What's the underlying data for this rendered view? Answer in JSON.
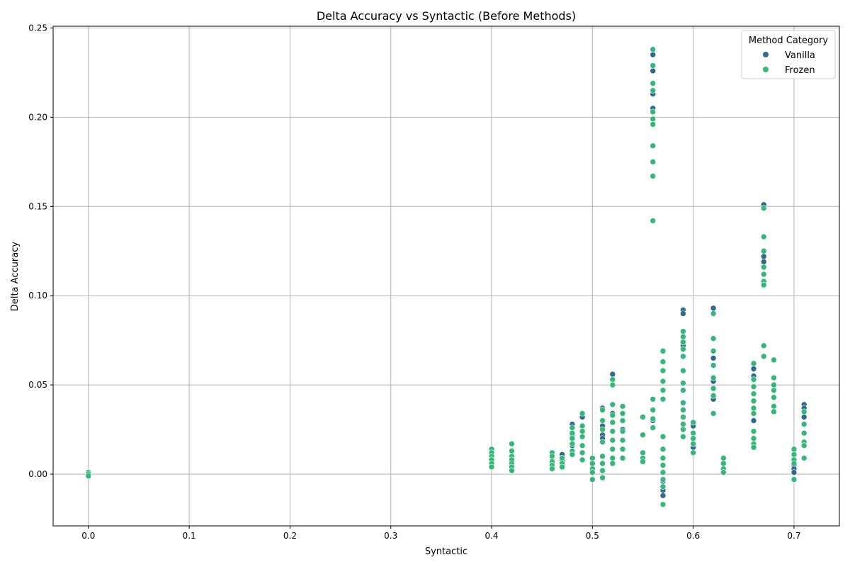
{
  "chart_data": {
    "type": "scatter",
    "title": "Delta Accuracy vs Syntactic (Before Methods)",
    "xlabel": "Syntactic",
    "ylabel": "Delta Accuracy",
    "xlim": [
      -0.035,
      0.745
    ],
    "ylim": [
      -0.029,
      0.251
    ],
    "xticks": [
      0.0,
      0.1,
      0.2,
      0.3,
      0.4,
      0.5,
      0.6,
      0.7
    ],
    "xtick_labels": [
      "0.0",
      "0.1",
      "0.2",
      "0.3",
      "0.4",
      "0.5",
      "0.6",
      "0.7"
    ],
    "yticks": [
      0.0,
      0.05,
      0.1,
      0.15,
      0.2,
      0.25
    ],
    "ytick_labels": [
      "0.00",
      "0.05",
      "0.10",
      "0.15",
      "0.20",
      "0.25"
    ],
    "grid": true,
    "legend": {
      "title": "Method Category",
      "placement": "top-right"
    },
    "series": [
      {
        "name": "Vanilla",
        "color": "#31688e",
        "points": [
          [
            0.0,
            0.0
          ],
          [
            0.0,
            -0.001
          ],
          [
            0.47,
            0.011
          ],
          [
            0.47,
            0.008
          ],
          [
            0.48,
            0.028
          ],
          [
            0.48,
            0.022
          ],
          [
            0.48,
            0.016
          ],
          [
            0.49,
            0.032
          ],
          [
            0.51,
            0.037
          ],
          [
            0.51,
            0.027
          ],
          [
            0.51,
            0.022
          ],
          [
            0.51,
            0.02
          ],
          [
            0.52,
            0.056
          ],
          [
            0.52,
            0.034
          ],
          [
            0.53,
            0.025
          ],
          [
            0.56,
            0.235
          ],
          [
            0.56,
            0.226
          ],
          [
            0.56,
            0.213
          ],
          [
            0.56,
            0.205
          ],
          [
            0.56,
            0.03
          ],
          [
            0.57,
            -0.012
          ],
          [
            0.57,
            -0.009
          ],
          [
            0.57,
            -0.004
          ],
          [
            0.59,
            0.092
          ],
          [
            0.59,
            0.09
          ],
          [
            0.59,
            0.072
          ],
          [
            0.6,
            0.027
          ],
          [
            0.6,
            0.015
          ],
          [
            0.6,
            0.012
          ],
          [
            0.62,
            0.093
          ],
          [
            0.62,
            0.065
          ],
          [
            0.62,
            0.052
          ],
          [
            0.62,
            0.042
          ],
          [
            0.66,
            0.059
          ],
          [
            0.66,
            0.055
          ],
          [
            0.66,
            0.03
          ],
          [
            0.67,
            0.151
          ],
          [
            0.67,
            0.122
          ],
          [
            0.67,
            0.119
          ],
          [
            0.7,
            0.005
          ],
          [
            0.7,
            0.003
          ],
          [
            0.7,
            0.001
          ],
          [
            0.71,
            0.039
          ],
          [
            0.71,
            0.037
          ],
          [
            0.71,
            0.032
          ]
        ]
      },
      {
        "name": "Frozen",
        "color": "#35b779",
        "points": [
          [
            0.0,
            0.001
          ],
          [
            0.0,
            0.0
          ],
          [
            0.0,
            -0.001
          ],
          [
            0.4,
            0.014
          ],
          [
            0.4,
            0.012
          ],
          [
            0.4,
            0.01
          ],
          [
            0.4,
            0.008
          ],
          [
            0.4,
            0.006
          ],
          [
            0.4,
            0.004
          ],
          [
            0.42,
            0.017
          ],
          [
            0.42,
            0.013
          ],
          [
            0.42,
            0.01
          ],
          [
            0.42,
            0.008
          ],
          [
            0.42,
            0.006
          ],
          [
            0.42,
            0.004
          ],
          [
            0.42,
            0.002
          ],
          [
            0.46,
            0.012
          ],
          [
            0.46,
            0.01
          ],
          [
            0.46,
            0.007
          ],
          [
            0.46,
            0.005
          ],
          [
            0.46,
            0.003
          ],
          [
            0.47,
            0.009
          ],
          [
            0.47,
            0.006
          ],
          [
            0.47,
            0.004
          ],
          [
            0.48,
            0.026
          ],
          [
            0.48,
            0.023
          ],
          [
            0.48,
            0.02
          ],
          [
            0.48,
            0.017
          ],
          [
            0.48,
            0.013
          ],
          [
            0.48,
            0.011
          ],
          [
            0.49,
            0.034
          ],
          [
            0.49,
            0.027
          ],
          [
            0.49,
            0.024
          ],
          [
            0.49,
            0.021
          ],
          [
            0.49,
            0.016
          ],
          [
            0.49,
            0.012
          ],
          [
            0.49,
            0.008
          ],
          [
            0.5,
            0.009
          ],
          [
            0.5,
            0.006
          ],
          [
            0.5,
            0.003
          ],
          [
            0.5,
            0.001
          ],
          [
            0.5,
            -0.003
          ],
          [
            0.51,
            0.036
          ],
          [
            0.51,
            0.03
          ],
          [
            0.51,
            0.025
          ],
          [
            0.51,
            0.018
          ],
          [
            0.51,
            0.01
          ],
          [
            0.51,
            0.006
          ],
          [
            0.51,
            0.002
          ],
          [
            0.51,
            -0.002
          ],
          [
            0.52,
            0.053
          ],
          [
            0.52,
            0.05
          ],
          [
            0.52,
            0.039
          ],
          [
            0.52,
            0.033
          ],
          [
            0.52,
            0.029
          ],
          [
            0.52,
            0.024
          ],
          [
            0.52,
            0.019
          ],
          [
            0.52,
            0.014
          ],
          [
            0.52,
            0.009
          ],
          [
            0.52,
            0.006
          ],
          [
            0.53,
            0.038
          ],
          [
            0.53,
            0.034
          ],
          [
            0.53,
            0.03
          ],
          [
            0.53,
            0.024
          ],
          [
            0.53,
            0.019
          ],
          [
            0.53,
            0.014
          ],
          [
            0.53,
            0.009
          ],
          [
            0.55,
            0.032
          ],
          [
            0.55,
            0.022
          ],
          [
            0.55,
            0.012
          ],
          [
            0.55,
            0.009
          ],
          [
            0.55,
            0.007
          ],
          [
            0.56,
            0.238
          ],
          [
            0.56,
            0.229
          ],
          [
            0.56,
            0.219
          ],
          [
            0.56,
            0.215
          ],
          [
            0.56,
            0.203
          ],
          [
            0.56,
            0.199
          ],
          [
            0.56,
            0.196
          ],
          [
            0.56,
            0.184
          ],
          [
            0.56,
            0.175
          ],
          [
            0.56,
            0.167
          ],
          [
            0.56,
            0.142
          ],
          [
            0.56,
            0.042
          ],
          [
            0.56,
            0.036
          ],
          [
            0.56,
            0.031
          ],
          [
            0.56,
            0.026
          ],
          [
            0.57,
            0.069
          ],
          [
            0.57,
            0.063
          ],
          [
            0.57,
            0.058
          ],
          [
            0.57,
            0.052
          ],
          [
            0.57,
            0.047
          ],
          [
            0.57,
            0.042
          ],
          [
            0.57,
            0.021
          ],
          [
            0.57,
            0.014
          ],
          [
            0.57,
            0.009
          ],
          [
            0.57,
            0.005
          ],
          [
            0.57,
            0.001
          ],
          [
            0.57,
            -0.003
          ],
          [
            0.57,
            -0.007
          ],
          [
            0.57,
            -0.017
          ],
          [
            0.59,
            0.08
          ],
          [
            0.59,
            0.077
          ],
          [
            0.59,
            0.074
          ],
          [
            0.59,
            0.07
          ],
          [
            0.59,
            0.066
          ],
          [
            0.59,
            0.058
          ],
          [
            0.59,
            0.051
          ],
          [
            0.59,
            0.047
          ],
          [
            0.59,
            0.04
          ],
          [
            0.59,
            0.036
          ],
          [
            0.59,
            0.032
          ],
          [
            0.59,
            0.028
          ],
          [
            0.59,
            0.025
          ],
          [
            0.59,
            0.021
          ],
          [
            0.6,
            0.029
          ],
          [
            0.6,
            0.023
          ],
          [
            0.6,
            0.02
          ],
          [
            0.6,
            0.017
          ],
          [
            0.6,
            0.012
          ],
          [
            0.62,
            0.09
          ],
          [
            0.62,
            0.076
          ],
          [
            0.62,
            0.069
          ],
          [
            0.62,
            0.061
          ],
          [
            0.62,
            0.054
          ],
          [
            0.62,
            0.048
          ],
          [
            0.62,
            0.044
          ],
          [
            0.62,
            0.034
          ],
          [
            0.63,
            0.009
          ],
          [
            0.63,
            0.006
          ],
          [
            0.63,
            0.003
          ],
          [
            0.63,
            0.001
          ],
          [
            0.66,
            0.062
          ],
          [
            0.66,
            0.053
          ],
          [
            0.66,
            0.049
          ],
          [
            0.66,
            0.045
          ],
          [
            0.66,
            0.041
          ],
          [
            0.66,
            0.037
          ],
          [
            0.66,
            0.034
          ],
          [
            0.66,
            0.024
          ],
          [
            0.66,
            0.02
          ],
          [
            0.66,
            0.017
          ],
          [
            0.66,
            0.015
          ],
          [
            0.67,
            0.149
          ],
          [
            0.67,
            0.133
          ],
          [
            0.67,
            0.125
          ],
          [
            0.67,
            0.116
          ],
          [
            0.67,
            0.112
          ],
          [
            0.67,
            0.108
          ],
          [
            0.67,
            0.106
          ],
          [
            0.67,
            0.072
          ],
          [
            0.67,
            0.066
          ],
          [
            0.68,
            0.064
          ],
          [
            0.68,
            0.054
          ],
          [
            0.68,
            0.05
          ],
          [
            0.68,
            0.047
          ],
          [
            0.68,
            0.043
          ],
          [
            0.68,
            0.038
          ],
          [
            0.68,
            0.035
          ],
          [
            0.7,
            0.014
          ],
          [
            0.7,
            0.011
          ],
          [
            0.7,
            0.008
          ],
          [
            0.7,
            0.006
          ],
          [
            0.7,
            -0.003
          ],
          [
            0.71,
            0.035
          ],
          [
            0.71,
            0.028
          ],
          [
            0.71,
            0.023
          ],
          [
            0.71,
            0.018
          ],
          [
            0.71,
            0.016
          ],
          [
            0.71,
            0.009
          ]
        ]
      }
    ]
  }
}
